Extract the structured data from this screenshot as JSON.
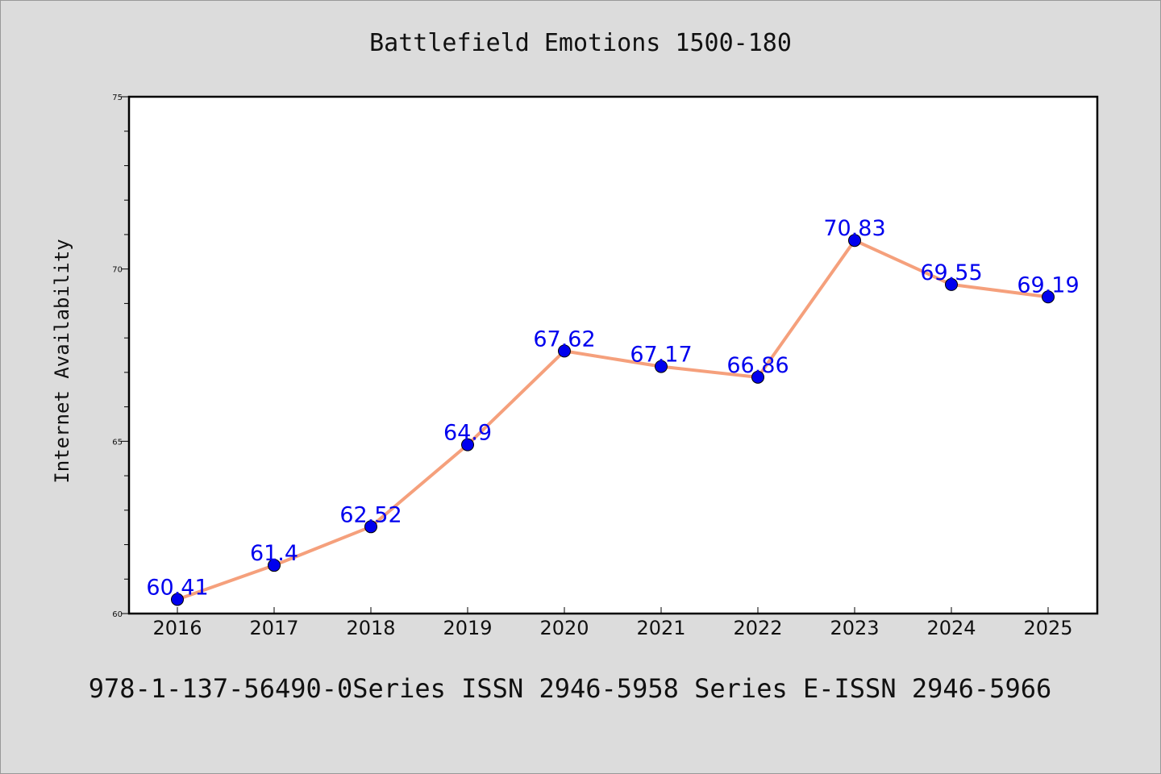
{
  "chart_data": {
    "type": "line",
    "title": "Battlefield Emotions 1500-180",
    "xlabel": "",
    "ylabel": "Internet Availability",
    "categories": [
      "2016",
      "2017",
      "2018",
      "2019",
      "2020",
      "2021",
      "2022",
      "2023",
      "2024",
      "2025"
    ],
    "series": [
      {
        "values": [
          60.41,
          61.4,
          62.52,
          64.9,
          67.62,
          67.17,
          66.86,
          70.83,
          69.55,
          69.19
        ],
        "labels": [
          "60.41",
          "61.4",
          "62.52",
          "64.9",
          "67.62",
          "67.17",
          "66.86",
          "70.83",
          "69.55",
          "69.19"
        ],
        "line_color": "#f5a07c",
        "marker_color": "#0000ee"
      }
    ],
    "ylim": [
      60,
      75
    ],
    "yticks": [
      60,
      65,
      70,
      75
    ],
    "grid": false,
    "footer": "978-1-137-56490-0Series ISSN 2946-5958 Series E-ISSN 2946-5966"
  }
}
